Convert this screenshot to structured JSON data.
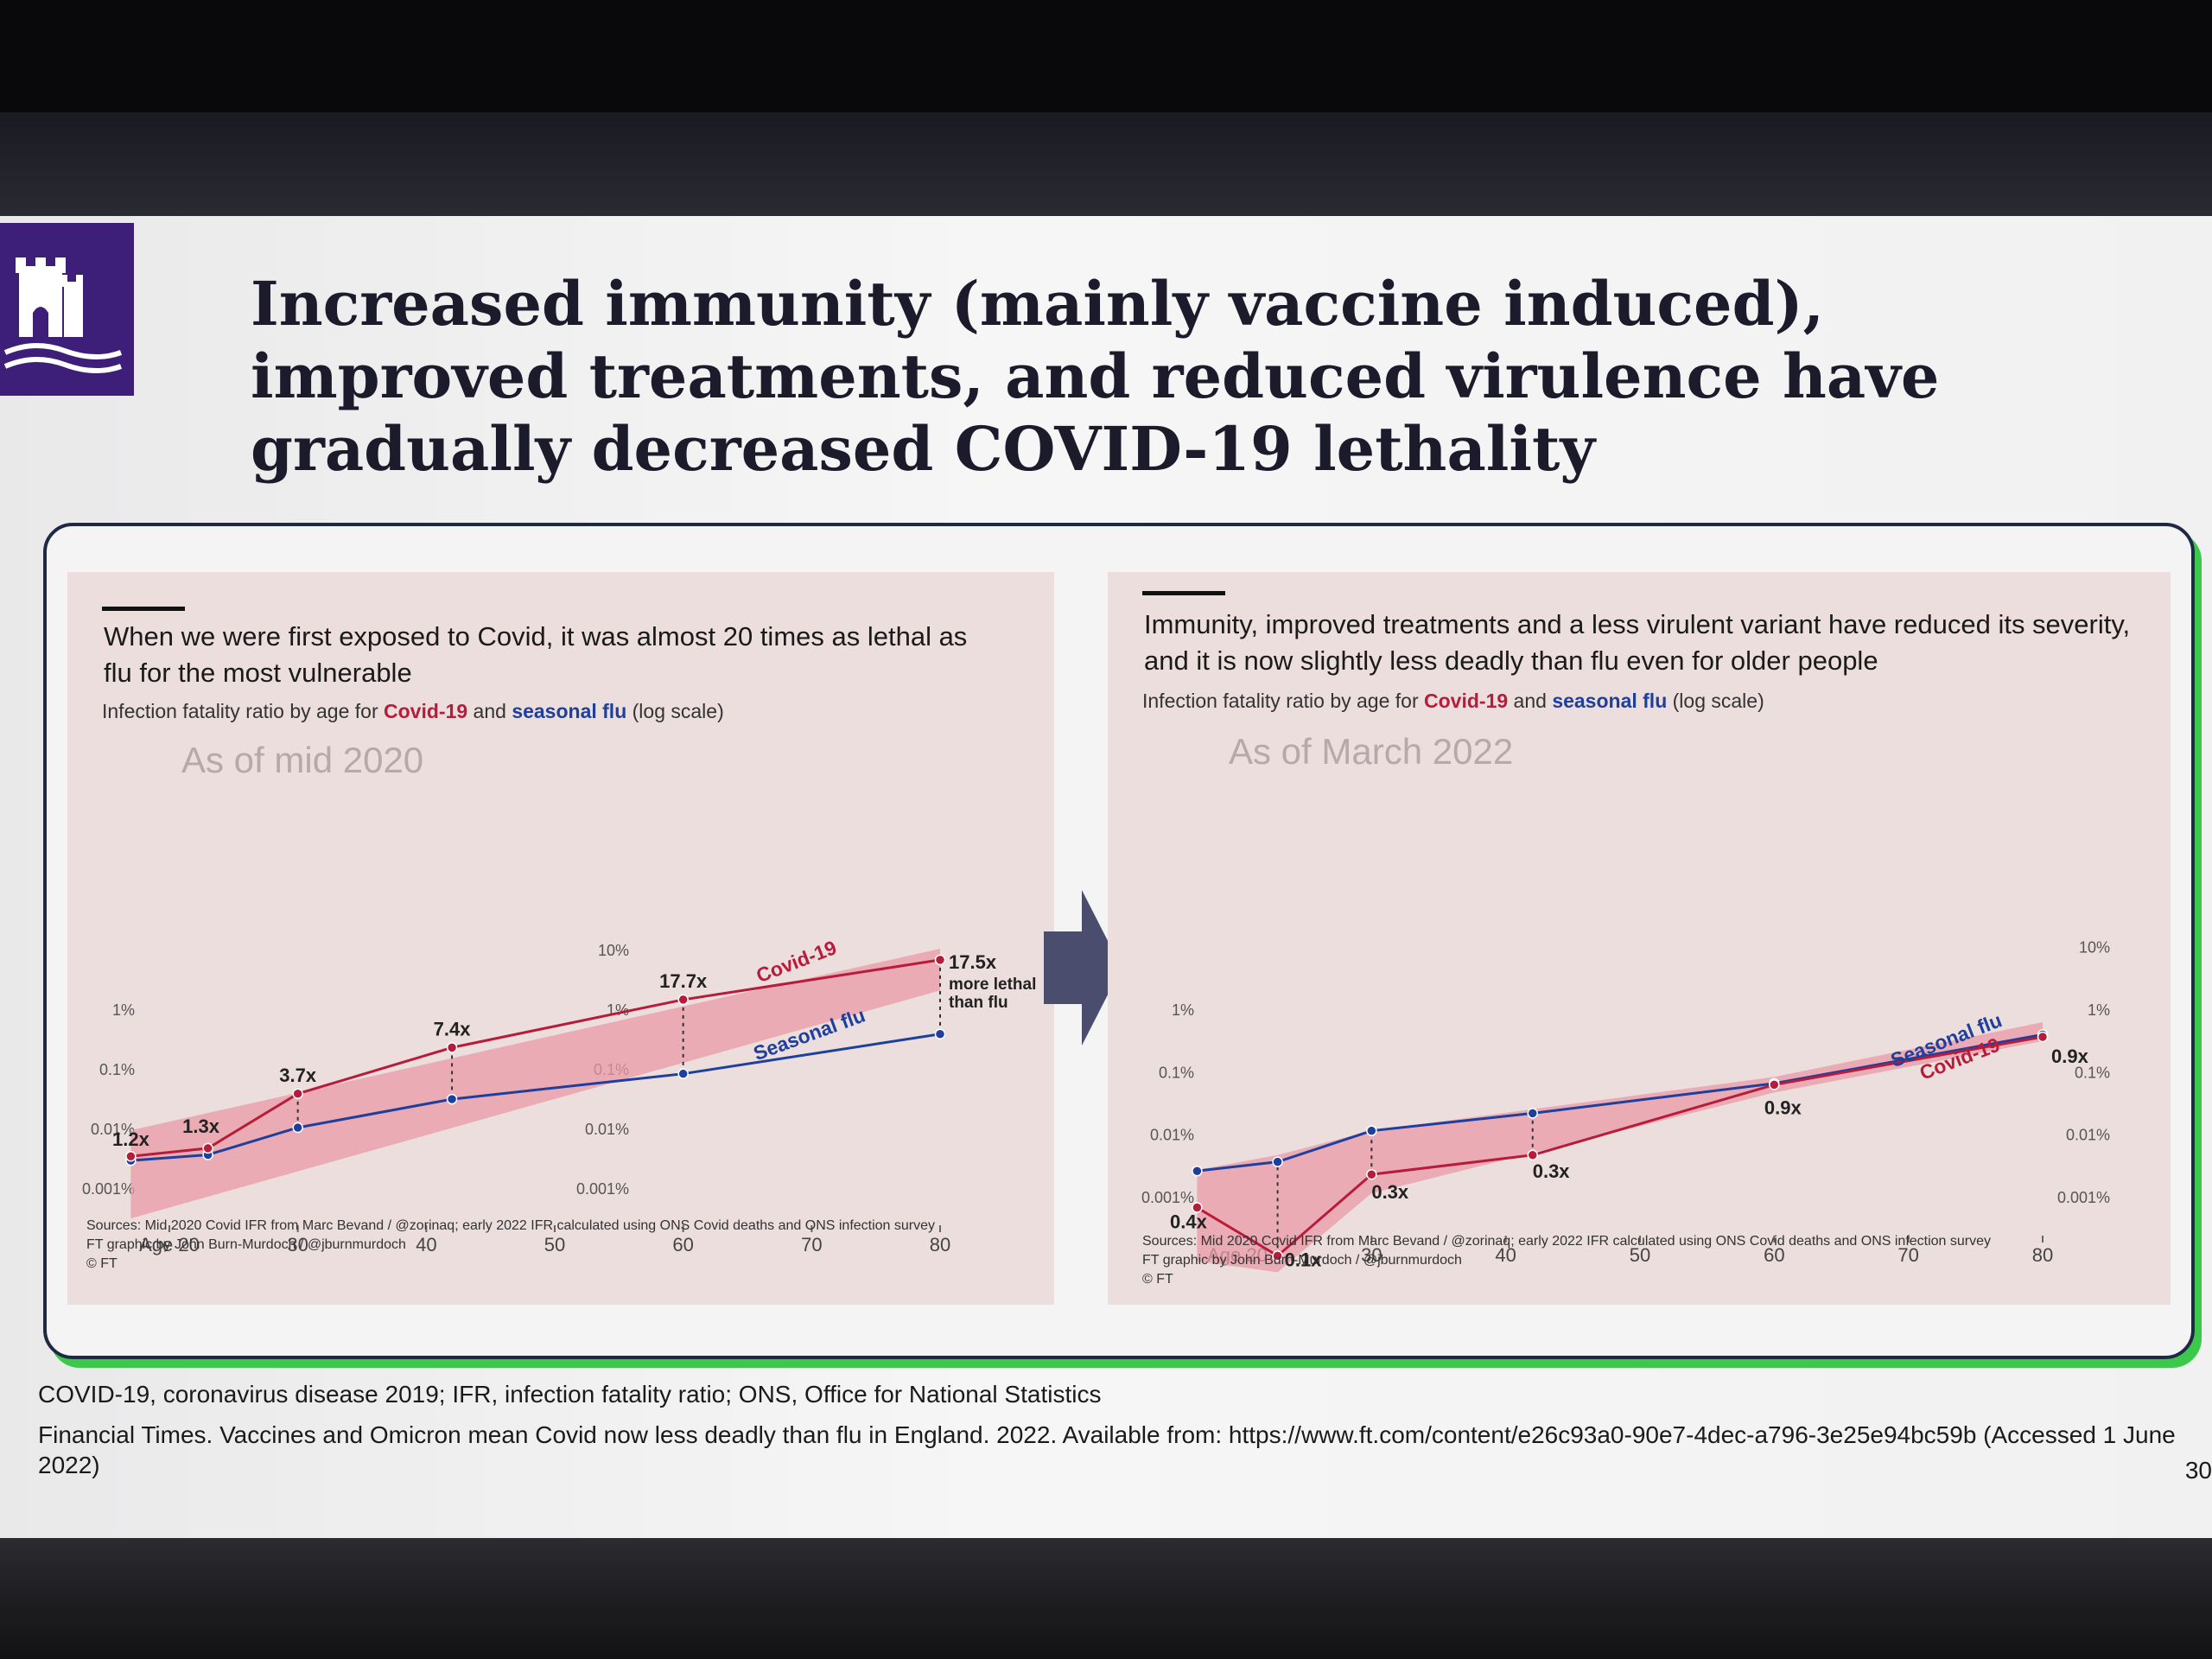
{
  "slide": {
    "title": "Increased immunity (mainly vaccine induced), improved treatments, and reduced virulence have gradually decreased COVID-19 lethality",
    "footnote_abbrev": "COVID-19, coronavirus disease 2019; IFR, infection fatality ratio; ONS, Office for National Statistics",
    "footnote_ref": "Financial Times. Vaccines and Omicron mean Covid now less deadly than flu in England. 2022. Available from: https://www.ft.com/content/e26c93a0-90e7-4dec-a796-3e25e94bc59b (Accessed 1 June 2022)",
    "page_number": "30"
  },
  "colors": {
    "covid": "#b71c3a",
    "flu": "#1f3f9c",
    "band": "#e99aa6",
    "brand": "#3d1f7a",
    "accent_green": "#3cc84a"
  },
  "panels": [
    {
      "headline": "When we were first exposed to Covid, it was almost 20 times as lethal as flu for the most vulnerable",
      "sub_prefix": "Infection fatality ratio by age for ",
      "sub_covid": "Covid-19",
      "sub_and": " and ",
      "sub_flu": "seasonal flu",
      "sub_suffix": " (log scale)",
      "period_label": "As of mid 2020",
      "sources": "Sources: Mid 2020 Covid IFR from Marc Bevand / @zorinaq; early 2022 IFR calculated using ONS Covid deaths and ONS infection survey",
      "credit": "FT graphic by John Burn-Murdoch / @jburnmurdoch",
      "copyright": "© FT"
    },
    {
      "headline": "Immunity, improved treatments and a less virulent variant have reduced its severity, and it is now slightly less deadly than flu even for older people",
      "sub_prefix": "Infection fatality ratio by age for ",
      "sub_covid": "Covid-19",
      "sub_and": " and ",
      "sub_flu": "seasonal flu",
      "sub_suffix": " (log scale)",
      "period_label": "As of March 2022",
      "sources": "Sources: Mid 2020 Covid IFR from Marc Bevand / @zorinaq; early 2022 IFR calculated using ONS Covid deaths and ONS infection survey",
      "credit": "FT graphic by John Burn-Murdoch / @jburnmurdoch",
      "copyright": "© FT"
    }
  ],
  "chart_data": [
    {
      "type": "line",
      "scale": "log",
      "ylim": [
        0.0001,
        10
      ],
      "y_ticks": [
        0.001,
        0.01,
        0.1,
        1,
        10
      ],
      "y_tick_labels": [
        "0.001%",
        "0.01%",
        "0.1%",
        "1%",
        "10%"
      ],
      "x_ticks": [
        20,
        30,
        40,
        50,
        60,
        70,
        80
      ],
      "x_tick_labels": [
        "Age 20",
        "30",
        "40",
        "50",
        "60",
        "70",
        "80"
      ],
      "series": [
        {
          "name": "Covid-19",
          "x": [
            17,
            23,
            30,
            42,
            60,
            80
          ],
          "y": [
            0.0033,
            0.0045,
            0.037,
            0.22,
            1.4,
            6.5
          ]
        },
        {
          "name": "Seasonal flu",
          "x": [
            17,
            23,
            30,
            42,
            60,
            80
          ],
          "y": [
            0.0028,
            0.0035,
            0.01,
            0.03,
            0.08,
            0.37
          ]
        }
      ],
      "band": {
        "x": [
          17,
          80
        ],
        "lower": [
          0.0003,
          2.0
        ],
        "upper": [
          0.009,
          10
        ]
      },
      "annotations": [
        {
          "x": 17,
          "y": 0.0033,
          "text": "1.2x"
        },
        {
          "x": 23,
          "y": 0.0045,
          "text": "1.3x"
        },
        {
          "x": 30,
          "y": 0.037,
          "text": "3.7x"
        },
        {
          "x": 42,
          "y": 0.22,
          "text": "7.4x"
        },
        {
          "x": 60,
          "y": 1.4,
          "text": "17.7x"
        },
        {
          "x": 80,
          "y": 6.5,
          "text": "17.5x"
        }
      ],
      "note": [
        "more lethal",
        "than flu"
      ]
    },
    {
      "type": "line",
      "scale": "log",
      "ylim": [
        0.0001,
        10
      ],
      "y_ticks": [
        0.001,
        0.01,
        0.1,
        1,
        10
      ],
      "y_tick_labels": [
        "0.001%",
        "0.01%",
        "0.1%",
        "1%",
        "10%"
      ],
      "x_ticks": [
        20,
        30,
        40,
        50,
        60,
        70,
        80
      ],
      "x_tick_labels": [
        "Age 20",
        "30",
        "40",
        "50",
        "60",
        "70",
        "80"
      ],
      "series": [
        {
          "name": "Covid-19",
          "x": [
            17,
            23,
            30,
            42,
            60,
            80
          ],
          "y": [
            0.00065,
            0.00011,
            0.0022,
            0.0045,
            0.06,
            0.35
          ]
        },
        {
          "name": "Seasonal flu",
          "x": [
            17,
            23,
            30,
            42,
            60,
            80
          ],
          "y": [
            0.0025,
            0.0035,
            0.011,
            0.021,
            0.063,
            0.38
          ]
        }
      ],
      "band": {
        "x": [
          17,
          80
        ],
        "lower": [
          9e-05,
          0.3
        ],
        "upper": [
          0.0026,
          0.6
        ]
      },
      "annotations": [
        {
          "x": 17,
          "y": 0.00065,
          "text": "0.4x"
        },
        {
          "x": 23,
          "y": 0.00011,
          "text": "0.1x"
        },
        {
          "x": 30,
          "y": 0.0022,
          "text": "0.3x"
        },
        {
          "x": 42,
          "y": 0.0045,
          "text": "0.3x"
        },
        {
          "x": 60,
          "y": 0.06,
          "text": "0.9x"
        },
        {
          "x": 80,
          "y": 0.35,
          "text": "0.9x"
        }
      ]
    }
  ]
}
